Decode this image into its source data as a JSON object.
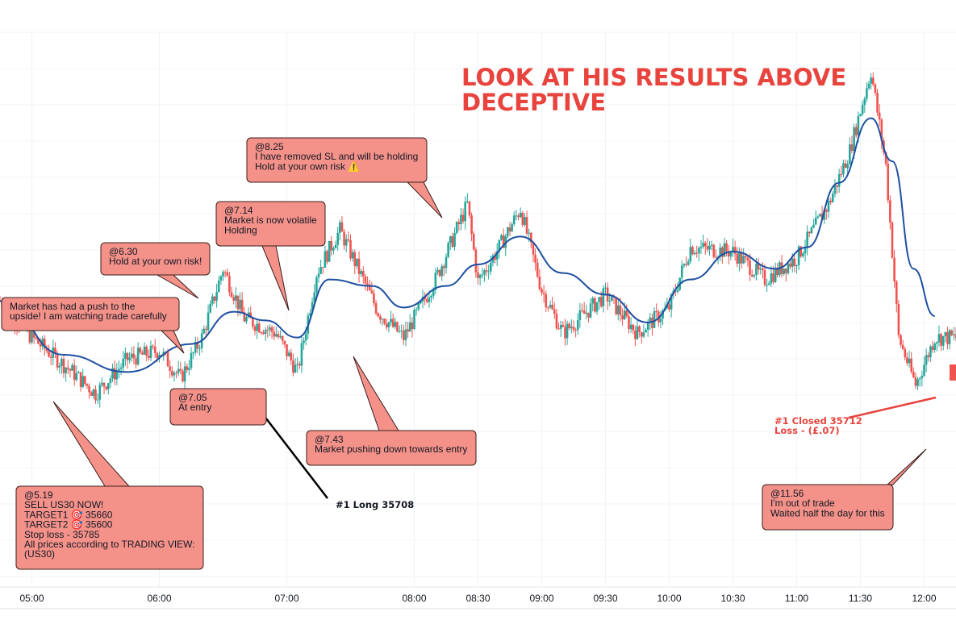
{
  "chart_data": {
    "type": "candlestick",
    "instrument": "US30",
    "x_ticks": [
      "05:00",
      "06:00",
      "07:00",
      "08:00",
      "08:30",
      "09:00",
      "09:30",
      "10:00",
      "10:30",
      "11:00",
      "11:30",
      "12:00"
    ],
    "price_path": [
      [
        "04:45",
        35745
      ],
      [
        "05:00",
        35728
      ],
      [
        "05:19",
        35712
      ],
      [
        "05:30",
        35702
      ],
      [
        "05:45",
        35718
      ],
      [
        "06:00",
        35722
      ],
      [
        "06:10",
        35709
      ],
      [
        "06:20",
        35728
      ],
      [
        "06:30",
        35760
      ],
      [
        "06:40",
        35737
      ],
      [
        "06:55",
        35730
      ],
      [
        "07:05",
        35712
      ],
      [
        "07:14",
        35758
      ],
      [
        "07:25",
        35778
      ],
      [
        "07:43",
        35740
      ],
      [
        "07:55",
        35728
      ],
      [
        "08:10",
        35755
      ],
      [
        "08:25",
        35790
      ],
      [
        "08:30",
        35754
      ],
      [
        "08:40",
        35770
      ],
      [
        "08:50",
        35788
      ],
      [
        "09:00",
        35750
      ],
      [
        "09:10",
        35730
      ],
      [
        "09:30",
        35748
      ],
      [
        "09:45",
        35730
      ],
      [
        "10:00",
        35742
      ],
      [
        "10:10",
        35770
      ],
      [
        "10:30",
        35768
      ],
      [
        "10:45",
        35755
      ],
      [
        "11:00",
        35765
      ],
      [
        "11:15",
        35790
      ],
      [
        "11:25",
        35815
      ],
      [
        "11:35",
        35852
      ],
      [
        "11:42",
        35808
      ],
      [
        "11:48",
        35728
      ],
      [
        "11:56",
        35706
      ],
      [
        "12:05",
        35728
      ]
    ],
    "moving_average": [
      [
        "04:45",
        35745
      ],
      [
        "05:15",
        35720
      ],
      [
        "05:45",
        35712
      ],
      [
        "06:15",
        35725
      ],
      [
        "06:35",
        35740
      ],
      [
        "06:50",
        35736
      ],
      [
        "07:05",
        35728
      ],
      [
        "07:20",
        35755
      ],
      [
        "07:40",
        35752
      ],
      [
        "07:55",
        35742
      ],
      [
        "08:15",
        35752
      ],
      [
        "08:30",
        35762
      ],
      [
        "08:50",
        35775
      ],
      [
        "09:10",
        35758
      ],
      [
        "09:30",
        35748
      ],
      [
        "09:50",
        35735
      ],
      [
        "10:10",
        35755
      ],
      [
        "10:30",
        35768
      ],
      [
        "10:50",
        35760
      ],
      [
        "11:05",
        35770
      ],
      [
        "11:20",
        35800
      ],
      [
        "11:35",
        35830
      ],
      [
        "11:45",
        35810
      ],
      [
        "11:55",
        35760
      ],
      [
        "12:05",
        35738
      ]
    ],
    "headline": [
      "LOOK AT HIS RESULTS ABOVE",
      "DECEPTIVE"
    ],
    "annotations": [
      {
        "id": "note-519",
        "time": "05:19",
        "lines": [
          "@5.19",
          "SELL US30 NOW!",
          "TARGET1 🎯 35660",
          "TARGET2 🎯 35600",
          "Stop loss  - 35785",
          "All prices according to TRADING VIEW:",
          "(US30)"
        ]
      },
      {
        "id": "note-push",
        "time": "06:25",
        "lines": [
          "Market has had a push to the",
          "upside!  I am watching trade carefully"
        ]
      },
      {
        "id": "note-630",
        "time": "06:30",
        "lines": [
          "@6.30",
          "Hold at your own risk!"
        ]
      },
      {
        "id": "note-705",
        "time": "07:05",
        "lines": [
          "@7.05",
          "At entry"
        ]
      },
      {
        "id": "note-714",
        "time": "07:14",
        "lines": [
          "@7.14",
          "Market is now volatile",
          "Holding"
        ]
      },
      {
        "id": "note-743",
        "time": "07:43",
        "lines": [
          "@7.43",
          "Market pushing down towards entry"
        ]
      },
      {
        "id": "note-825",
        "time": "08:25",
        "lines": [
          "@8.25",
          "I have removed SL and will be holding",
          "Hold at your own risk ⚠️"
        ]
      },
      {
        "id": "note-1156",
        "time": "11:56",
        "lines": [
          "@11.56",
          "I'm out of trade",
          "Waited half the day for this"
        ]
      }
    ],
    "trade_labels": {
      "entry": "#1 Long 35708",
      "exit_line1": "#1 Closed 35712",
      "exit_line2": "Loss - (£.07)"
    },
    "colors": {
      "up": "#26a69a",
      "down": "#ef5350",
      "ma": "#1e4fa1",
      "note_fill": "#f4928a",
      "note_border": "#3a1d1a",
      "headline": "#e8433d"
    }
  }
}
